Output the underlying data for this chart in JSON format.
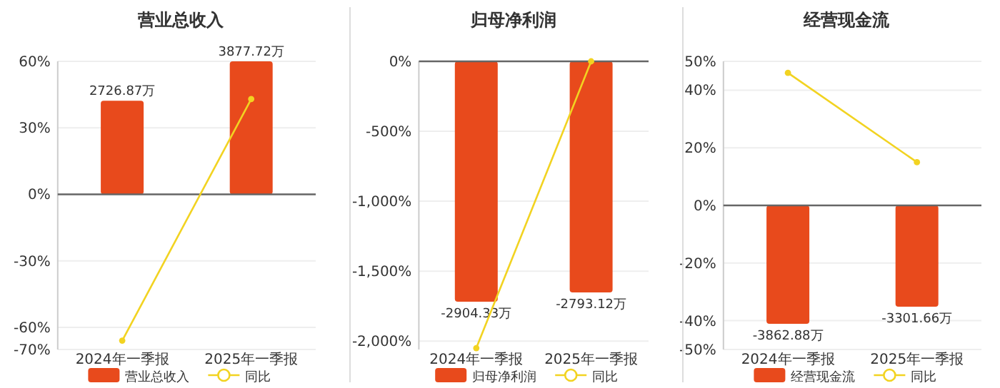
{
  "chart_data": [
    {
      "type": "bar",
      "title": "营业总收入",
      "categories": [
        "2024年一季报",
        "2025年一季报"
      ],
      "series": [
        {
          "name": "营业总收入",
          "color": "#e84a1c",
          "axis": "y2",
          "values": [
            2726.87,
            3877.72
          ],
          "value_labels": [
            "2726.87万",
            "3877.72万"
          ]
        },
        {
          "name": "同比",
          "type": "line",
          "color": "#f2d321",
          "values": [
            -66,
            43
          ]
        }
      ],
      "ylim": [
        -70,
        60
      ],
      "yticks": [
        {
          "value": 60,
          "label": "60%"
        },
        {
          "value": 30,
          "label": "30%"
        },
        {
          "value": 0,
          "label": "0%"
        },
        {
          "value": -30,
          "label": "-30%"
        },
        {
          "value": -60,
          "label": "-60%"
        },
        {
          "value": -70,
          "label": "-70%"
        }
      ],
      "y2lim": [
        -4524,
        3877.72
      ],
      "tick_labels": [
        "x",
        "y"
      ],
      "grid": "y",
      "legend": "bottom",
      "marker": "circle"
    },
    {
      "type": "bar",
      "title": "归母净利润",
      "categories": [
        "2024年一季报",
        "2025年一季报"
      ],
      "series": [
        {
          "name": "归母净利润",
          "color": "#e84a1c",
          "axis": "y2",
          "values": [
            -2904.33,
            -2793.12
          ],
          "value_labels": [
            "-2904.33万",
            "-2793.12万"
          ]
        },
        {
          "name": "同比",
          "type": "line",
          "color": "#f2d321",
          "values": [
            -2050,
            0
          ]
        }
      ],
      "ylim": [
        -2060,
        0
      ],
      "yticks": [
        {
          "value": 0,
          "label": "0%"
        },
        {
          "value": -500,
          "label": "-500%"
        },
        {
          "value": -1000,
          "label": "-1,000%"
        },
        {
          "value": -1500,
          "label": "-1,500%"
        },
        {
          "value": -2000,
          "label": "-2,000%"
        }
      ],
      "y2lim": [
        -3483,
        0
      ],
      "tick_labels": [
        "x",
        "y"
      ],
      "grid": "y",
      "legend": "bottom",
      "marker": "circle"
    },
    {
      "type": "bar",
      "title": "经营现金流",
      "categories": [
        "2024年一季报",
        "2025年一季报"
      ],
      "series": [
        {
          "name": "经营现金流",
          "color": "#e84a1c",
          "axis": "y2",
          "values": [
            -3862.88,
            -3301.66
          ],
          "value_labels": [
            "-3862.88万",
            "-3301.66万"
          ]
        },
        {
          "name": "同比",
          "type": "line",
          "color": "#f2d321",
          "values": [
            46,
            15
          ]
        }
      ],
      "ylim": [
        -50,
        50
      ],
      "yticks": [
        {
          "value": 50,
          "label": "50%"
        },
        {
          "value": 40,
          "label": "40%"
        },
        {
          "value": 20,
          "label": "20%"
        },
        {
          "value": 0,
          "label": "0%"
        },
        {
          "value": -20,
          "label": "-20%"
        },
        {
          "value": -40,
          "label": "-40%"
        },
        {
          "value": -50,
          "label": "-50%"
        }
      ],
      "y2lim": [
        -4700,
        4700
      ],
      "tick_labels": [
        "x",
        "y"
      ],
      "grid": "y",
      "legend": "bottom",
      "marker": "circle"
    }
  ]
}
